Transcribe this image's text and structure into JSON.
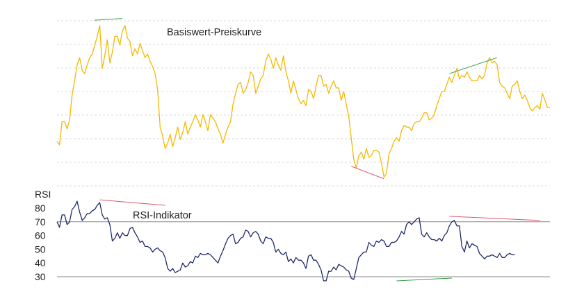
{
  "chart_data": [
    {
      "type": "line",
      "title": "Basiswert-Preiskurve",
      "xlabel": "",
      "ylabel": "",
      "colors": {
        "line": "#f5b800",
        "grid": "#d9d9d9",
        "bullish_divergence": "#3a9a4a",
        "bearish_divergence": "#e0566a"
      },
      "grid": true,
      "ylim": [
        20,
        122
      ],
      "series": [
        {
          "values": [
            52,
            50,
            63,
            63,
            59,
            64,
            78,
            86,
            95,
            99,
            92,
            90,
            95,
            99,
            101,
            106,
            111,
            117,
            93,
            100,
            109,
            96,
            102,
            111,
            111,
            106,
            114,
            117,
            110,
            108,
            100,
            104,
            101,
            107,
            103,
            99,
            101,
            97,
            94,
            90,
            81,
            60,
            55,
            48,
            51,
            56,
            49,
            54,
            60,
            53,
            57,
            63,
            56,
            60,
            63,
            67,
            64,
            60,
            67,
            63,
            58,
            67,
            65,
            63,
            59,
            56,
            51,
            56,
            60,
            63,
            73,
            79,
            84,
            85,
            79,
            81,
            85,
            91,
            89,
            79,
            83,
            87,
            89,
            97,
            101,
            98,
            93,
            99,
            95,
            92,
            100,
            91,
            86,
            79,
            86,
            81,
            76,
            73,
            75,
            72,
            81,
            80,
            76,
            83,
            89,
            89,
            83,
            84,
            79,
            83,
            86,
            82,
            82,
            75,
            80,
            73,
            66,
            54,
            42,
            37,
            44,
            46,
            42,
            48,
            43,
            44,
            47,
            47,
            46,
            40,
            32,
            34,
            45,
            48,
            52,
            54,
            52,
            58,
            61,
            60,
            60,
            58,
            62,
            63,
            63,
            65,
            68,
            68,
            64,
            65,
            67,
            72,
            76,
            80,
            80,
            84,
            88,
            85,
            89,
            93,
            87,
            89,
            88,
            91,
            88,
            86,
            86,
            86,
            89,
            87,
            89,
            96,
            99,
            96,
            97,
            95,
            85,
            83,
            82,
            79,
            76,
            83,
            84,
            86,
            80,
            76,
            78,
            75,
            71,
            69,
            71,
            72,
            70,
            79,
            75,
            71,
            71
          ]
        }
      ],
      "annotations": [
        {
          "type": "divergence-line",
          "sentiment": "bullish",
          "from": [
            15,
            120
          ],
          "to": [
            26,
            121
          ]
        },
        {
          "type": "divergence-line",
          "sentiment": "bearish",
          "from": [
            117,
            38
          ],
          "to": [
            130,
            31
          ]
        },
        {
          "type": "divergence-line",
          "sentiment": "bullish",
          "from": [
            156,
            90
          ],
          "to": [
            175,
            99
          ]
        }
      ]
    },
    {
      "type": "line",
      "title": "RSI-Indikator",
      "ylabel": "RSI",
      "xlabel": "",
      "colors": {
        "line": "#1f2a6b",
        "threshold": "#888888",
        "bullish_divergence": "#3a9a4a",
        "bearish_divergence": "#e0566a"
      },
      "ylim": [
        30,
        85
      ],
      "yticks": [
        30,
        40,
        50,
        60,
        70,
        80
      ],
      "threshold": 70,
      "series": [
        {
          "values": [
            70,
            66,
            75,
            75,
            68,
            70,
            79,
            81,
            85,
            77,
            71,
            73,
            76,
            76,
            78,
            79,
            82,
            84,
            75,
            72,
            73,
            68,
            56,
            58,
            62,
            58,
            62,
            60,
            60,
            65,
            66,
            62,
            59,
            55,
            56,
            52,
            52,
            51,
            48,
            50,
            51,
            49,
            48,
            44,
            36,
            34,
            36,
            33,
            34,
            35,
            40,
            37,
            38,
            41,
            40,
            45,
            44,
            47,
            46,
            46,
            47,
            46,
            44,
            42,
            40,
            45,
            49,
            54,
            58,
            60,
            61,
            54,
            55,
            58,
            59,
            64,
            63,
            59,
            62,
            63,
            61,
            56,
            54,
            59,
            58,
            58,
            55,
            48,
            50,
            47,
            46,
            48,
            41,
            43,
            40,
            44,
            42,
            42,
            40,
            36,
            45,
            46,
            42,
            42,
            39,
            35,
            27,
            27,
            34,
            34,
            37,
            35,
            39,
            38,
            37,
            35,
            34,
            29,
            28,
            36,
            44,
            46,
            48,
            48,
            55,
            53,
            52,
            56,
            55,
            57,
            56,
            52,
            52,
            55,
            55,
            56,
            59,
            63,
            61,
            68,
            70,
            68,
            70,
            72,
            73,
            61,
            59,
            62,
            59,
            57,
            57,
            56,
            58,
            56,
            60,
            62,
            67,
            70,
            71,
            67,
            67,
            52,
            48,
            56,
            51,
            54,
            53,
            52,
            47,
            45,
            43,
            45,
            45,
            46,
            45,
            44,
            47,
            44,
            44,
            46,
            47,
            46,
            46
          ]
        }
      ],
      "annotations": [
        {
          "type": "divergence-line",
          "sentiment": "bearish",
          "from": [
            17,
            86
          ],
          "to": [
            43,
            82
          ]
        },
        {
          "type": "divergence-line",
          "sentiment": "bullish",
          "from": [
            135,
            27
          ],
          "to": [
            157,
            29
          ]
        },
        {
          "type": "divergence-line",
          "sentiment": "bearish",
          "from": [
            156,
            74
          ],
          "to": [
            192,
            71
          ]
        }
      ]
    }
  ]
}
